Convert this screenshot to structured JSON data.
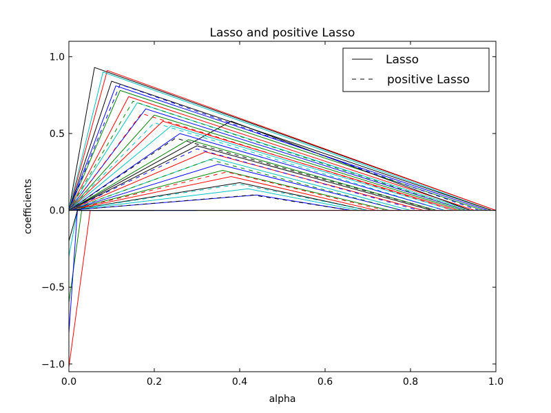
{
  "chart_data": {
    "type": "line",
    "title": "Lasso and positive Lasso",
    "xlabel": "alpha",
    "ylabel": "coefficients",
    "xlim": [
      0.0,
      1.0
    ],
    "ylim": [
      -1.05,
      1.1
    ],
    "xticks": [
      0.0,
      0.2,
      0.4,
      0.6,
      0.8,
      1.0
    ],
    "xtick_labels": [
      "0.0",
      "0.2",
      "0.4",
      "0.6",
      "0.8",
      "1.0"
    ],
    "yticks": [
      -1.0,
      -0.5,
      0.0,
      0.5,
      1.0
    ],
    "ytick_labels": [
      "−1.0",
      "−0.5",
      "0.0",
      "0.5",
      "1.0"
    ],
    "grid": false,
    "legend": {
      "placement": "top-right",
      "entries": [
        {
          "label": "Lasso",
          "style": "solid"
        },
        {
          "label": "positive Lasso",
          "style": "dashed"
        }
      ]
    },
    "colors": [
      "#0000ff",
      "#008000",
      "#ff0000",
      "#00bfbf",
      "#000000"
    ],
    "series": [
      {
        "style": "solid",
        "color": "#000000",
        "x": [
          0.0,
          0.06,
          1.0
        ],
        "y": [
          0.0,
          0.93,
          0.0
        ]
      },
      {
        "style": "solid",
        "color": "#ff0000",
        "x": [
          0.0,
          0.09,
          1.0
        ],
        "y": [
          0.0,
          0.91,
          0.0
        ]
      },
      {
        "style": "solid",
        "color": "#00bfbf",
        "x": [
          0.0,
          0.08,
          0.99
        ],
        "y": [
          0.0,
          0.9,
          0.0
        ]
      },
      {
        "style": "solid",
        "color": "#000000",
        "x": [
          0.0,
          0.1,
          0.99
        ],
        "y": [
          0.0,
          0.84,
          0.0
        ]
      },
      {
        "style": "solid",
        "color": "#0000ff",
        "x": [
          0.0,
          0.11,
          0.98
        ],
        "y": [
          0.0,
          0.81,
          0.0
        ]
      },
      {
        "style": "solid",
        "color": "#008000",
        "x": [
          0.0,
          0.12,
          0.97
        ],
        "y": [
          0.0,
          0.78,
          0.0
        ]
      },
      {
        "style": "solid",
        "color": "#ff0000",
        "x": [
          0.0,
          0.14,
          0.95
        ],
        "y": [
          0.0,
          0.74,
          0.0
        ]
      },
      {
        "style": "solid",
        "color": "#00bfbf",
        "x": [
          0.0,
          0.16,
          0.94
        ],
        "y": [
          0.0,
          0.7,
          0.0
        ]
      },
      {
        "style": "solid",
        "color": "#000000",
        "x": [
          0.0,
          0.38,
          0.94
        ],
        "y": [
          0.0,
          0.58,
          0.0
        ]
      },
      {
        "style": "solid",
        "color": "#0000ff",
        "x": [
          0.0,
          0.18,
          0.93
        ],
        "y": [
          0.0,
          0.66,
          0.0
        ]
      },
      {
        "style": "solid",
        "color": "#008000",
        "x": [
          0.0,
          0.2,
          0.92
        ],
        "y": [
          0.0,
          0.62,
          0.0
        ]
      },
      {
        "style": "solid",
        "color": "#ff0000",
        "x": [
          0.0,
          0.22,
          0.91
        ],
        "y": [
          0.0,
          0.58,
          0.0
        ]
      },
      {
        "style": "solid",
        "color": "#00bfbf",
        "x": [
          0.0,
          0.24,
          0.9
        ],
        "y": [
          0.0,
          0.55,
          0.0
        ]
      },
      {
        "style": "solid",
        "color": "#0000ff",
        "x": [
          0.0,
          0.26,
          0.88
        ],
        "y": [
          0.0,
          0.5,
          0.0
        ]
      },
      {
        "style": "solid",
        "color": "#008000",
        "x": [
          0.0,
          0.28,
          0.86
        ],
        "y": [
          0.0,
          0.46,
          0.0
        ]
      },
      {
        "style": "solid",
        "color": "#000000",
        "x": [
          0.0,
          0.3,
          0.85
        ],
        "y": [
          0.0,
          0.42,
          0.0
        ]
      },
      {
        "style": "solid",
        "color": "#ff0000",
        "x": [
          0.0,
          0.32,
          0.83
        ],
        "y": [
          0.0,
          0.38,
          0.0
        ]
      },
      {
        "style": "solid",
        "color": "#00bfbf",
        "x": [
          0.0,
          0.34,
          0.8
        ],
        "y": [
          0.0,
          0.34,
          0.0
        ]
      },
      {
        "style": "solid",
        "color": "#0000ff",
        "x": [
          0.0,
          0.35,
          0.78
        ],
        "y": [
          0.0,
          0.3,
          0.0
        ]
      },
      {
        "style": "solid",
        "color": "#008000",
        "x": [
          0.0,
          0.36,
          0.75
        ],
        "y": [
          0.0,
          0.26,
          0.0
        ]
      },
      {
        "style": "solid",
        "color": "#ff0000",
        "x": [
          0.0,
          0.38,
          0.72
        ],
        "y": [
          0.0,
          0.22,
          0.0
        ]
      },
      {
        "style": "solid",
        "color": "#000000",
        "x": [
          0.0,
          0.4,
          0.7
        ],
        "y": [
          0.0,
          0.18,
          0.0
        ]
      },
      {
        "style": "solid",
        "color": "#00bfbf",
        "x": [
          0.0,
          0.42,
          0.68
        ],
        "y": [
          0.0,
          0.14,
          0.0
        ]
      },
      {
        "style": "solid",
        "color": "#0000ff",
        "x": [
          0.0,
          0.44,
          0.66
        ],
        "y": [
          0.0,
          0.1,
          0.0
        ]
      },
      {
        "style": "solid",
        "color": "#ff0000",
        "x": [
          0.0,
          0.0,
          0.05,
          0.9
        ],
        "y": [
          -1.02,
          -1.02,
          0.0,
          0.0
        ]
      },
      {
        "style": "solid",
        "color": "#008000",
        "x": [
          0.0,
          0.0,
          0.03,
          0.4
        ],
        "y": [
          -0.6,
          -0.6,
          0.0,
          0.0
        ]
      },
      {
        "style": "solid",
        "color": "#00bfbf",
        "x": [
          0.0,
          0.0,
          0.02,
          0.3
        ],
        "y": [
          -0.3,
          -0.3,
          0.0,
          0.0
        ]
      },
      {
        "style": "solid",
        "color": "#0000ff",
        "x": [
          0.0,
          0.0,
          0.02,
          0.3
        ],
        "y": [
          -0.8,
          -0.8,
          0.0,
          0.0
        ]
      },
      {
        "style": "solid",
        "color": "#000000",
        "x": [
          0.0,
          0.0,
          0.02,
          0.2
        ],
        "y": [
          -0.2,
          -0.2,
          0.0,
          0.0
        ]
      },
      {
        "style": "dashed",
        "color": "#0000ff",
        "x": [
          0.0,
          0.12,
          0.96
        ],
        "y": [
          0.0,
          0.82,
          0.0
        ]
      },
      {
        "style": "dashed",
        "color": "#008000",
        "x": [
          0.0,
          0.15,
          0.93
        ],
        "y": [
          0.0,
          0.71,
          0.0
        ]
      },
      {
        "style": "dashed",
        "color": "#ff0000",
        "x": [
          0.0,
          0.17,
          0.9
        ],
        "y": [
          0.0,
          0.63,
          0.0
        ]
      },
      {
        "style": "dashed",
        "color": "#00bfbf",
        "x": [
          0.0,
          0.2,
          0.88
        ],
        "y": [
          0.0,
          0.57,
          0.0
        ]
      },
      {
        "style": "dashed",
        "color": "#000000",
        "x": [
          0.0,
          0.25,
          0.86
        ],
        "y": [
          0.0,
          0.47,
          0.0
        ]
      },
      {
        "style": "dashed",
        "color": "#0000ff",
        "x": [
          0.0,
          0.3,
          0.82
        ],
        "y": [
          0.0,
          0.4,
          0.0
        ]
      },
      {
        "style": "dashed",
        "color": "#008000",
        "x": [
          0.0,
          0.33,
          0.78
        ],
        "y": [
          0.0,
          0.33,
          0.0
        ]
      },
      {
        "style": "dashed",
        "color": "#ff0000",
        "x": [
          0.0,
          0.37,
          0.74
        ],
        "y": [
          0.0,
          0.25,
          0.0
        ]
      },
      {
        "style": "dashed",
        "color": "#00bfbf",
        "x": [
          0.0,
          0.4,
          0.7
        ],
        "y": [
          0.0,
          0.17,
          0.0
        ]
      },
      {
        "style": "dashed",
        "color": "#000000",
        "x": [
          0.0,
          0.43,
          0.66
        ],
        "y": [
          0.0,
          0.1,
          0.0
        ]
      }
    ]
  }
}
